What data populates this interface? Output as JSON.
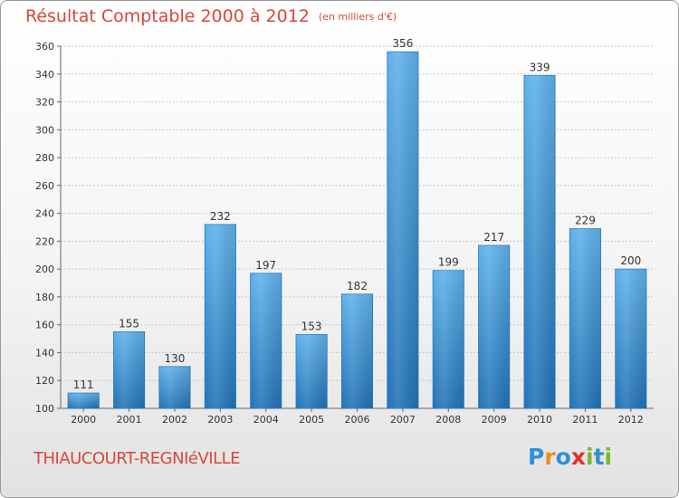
{
  "header": {
    "title": "Résultat Comptable 2000 à 2012",
    "subtitle": "(en milliers d'€)"
  },
  "commune": "THIAUCOURT-REGNIéVILLE",
  "brand": {
    "letters": [
      "P",
      "r",
      "o",
      "x",
      "i",
      "t",
      "i"
    ],
    "colors": [
      "#2f8fd8",
      "#f28c1e",
      "#2f8fd8",
      "#e0302a",
      "#7ab929",
      "#2f8fd8",
      "#7ab929"
    ]
  },
  "chart_data": {
    "type": "bar",
    "title": "Résultat Comptable 2000 à 2012",
    "subtitle": "(en milliers d'€)",
    "categories": [
      "2000",
      "2001",
      "2002",
      "2003",
      "2004",
      "2005",
      "2006",
      "2007",
      "2008",
      "2009",
      "2010",
      "2011",
      "2012"
    ],
    "values": [
      111,
      155,
      130,
      232,
      197,
      153,
      182,
      356,
      199,
      217,
      339,
      229,
      200
    ],
    "ylim": [
      100,
      360
    ],
    "yticks": [
      100,
      120,
      140,
      160,
      180,
      200,
      220,
      240,
      260,
      280,
      300,
      320,
      340,
      360
    ],
    "grid": true,
    "bar_color": "#3d94dc",
    "data_labels": true
  }
}
